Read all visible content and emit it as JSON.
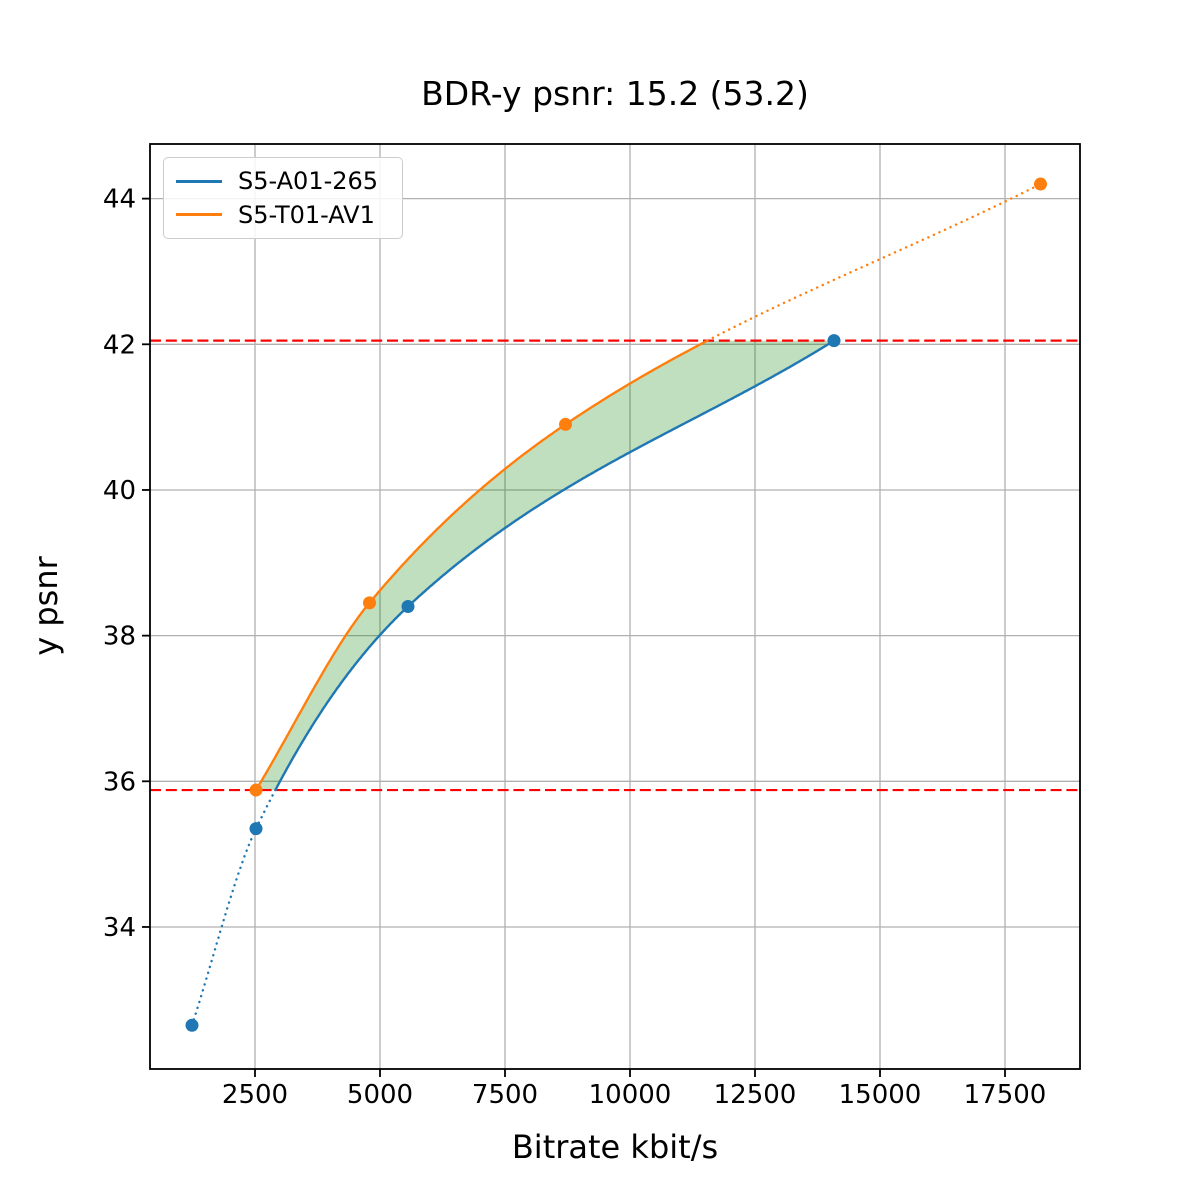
{
  "chart_data": {
    "type": "line",
    "title": "BDR-y psnr: 15.2 (53.2)",
    "xlabel": "Bitrate kbit/s",
    "ylabel": "y psnr",
    "xlim": [
      400,
      19000
    ],
    "ylim": [
      32.05,
      44.75
    ],
    "x_ticks": [
      2500,
      5000,
      7500,
      10000,
      12500,
      15000,
      17500
    ],
    "x_tick_labels": [
      "2500",
      "5000",
      "7500",
      "10000",
      "12500",
      "15000",
      "17500"
    ],
    "y_ticks": [
      34,
      36,
      38,
      40,
      42,
      44
    ],
    "y_tick_labels": [
      "34",
      "36",
      "38",
      "40",
      "42",
      "44"
    ],
    "grid": true,
    "legend_position": "upper left",
    "series": [
      {
        "name": "S5-A01-265",
        "color": "#1f77b4",
        "marker": "circle",
        "x": [
          1240,
          2520,
          5560,
          14080
        ],
        "y": [
          32.65,
          35.35,
          38.4,
          42.05
        ]
      },
      {
        "name": "S5-T01-AV1",
        "color": "#ff7f0e",
        "marker": "circle",
        "x": [
          2520,
          4790,
          8710,
          18210
        ],
        "y": [
          35.88,
          38.45,
          40.9,
          44.2
        ]
      }
    ],
    "hlines": [
      {
        "y": 42.05,
        "color": "#ff0000",
        "style": "dashed"
      },
      {
        "y": 35.88,
        "color": "#ff0000",
        "style": "dashed"
      }
    ],
    "overlap_range": [
      35.88,
      42.05
    ],
    "line_style_note": "curves solid inside overlap psnr range, dotted outside",
    "shaded_region": {
      "between": [
        "S5-T01-AV1",
        "S5-A01-265"
      ],
      "y_range": [
        35.88,
        42.05
      ],
      "color": "rgba(0,128,0,0.25)"
    },
    "colors": {
      "grid": "#b0b0b0",
      "spine": "#000000",
      "background": "#ffffff"
    }
  }
}
